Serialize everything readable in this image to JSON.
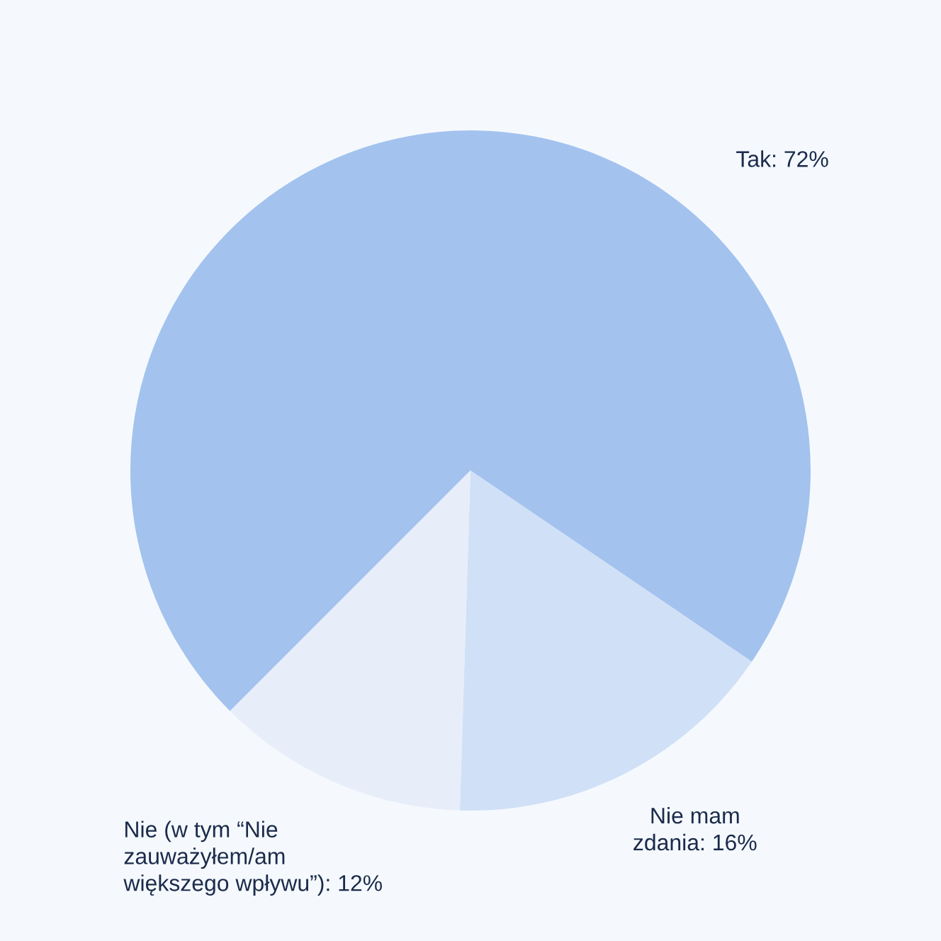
{
  "chart_data": {
    "type": "pie",
    "categories": [
      "Tak",
      "Nie mam\nzdania",
      "Nie (w tym “Nie\nzauważyłem/am\nwiększego wpływu”)"
    ],
    "values": [
      72,
      16,
      12
    ],
    "value_labels": [
      "72%",
      "16%",
      "12%"
    ],
    "colors": [
      "#a3c2ee",
      "#d0e0f6",
      "#e7eefa"
    ]
  }
}
